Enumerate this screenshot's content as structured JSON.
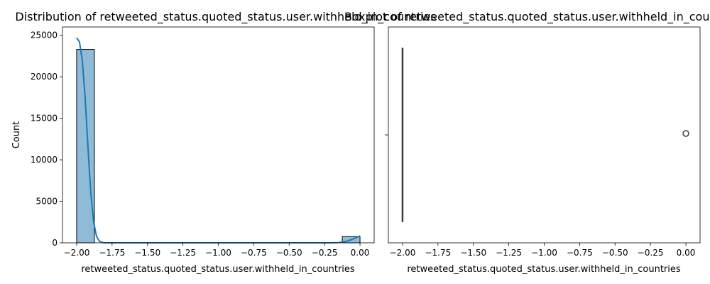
{
  "chart_data": [
    {
      "type": "histogram",
      "title": "Distribution of retweeted_status.quoted_status.user.withheld_in_countries",
      "xlabel": "retweeted_status.quoted_status.user.withheld_in_countries",
      "ylabel": "Count",
      "xlim": [
        -2.1,
        0.1
      ],
      "ylim": [
        0,
        26000
      ],
      "xticks": [
        -2.0,
        -1.75,
        -1.5,
        -1.25,
        -1.0,
        -0.75,
        -0.5,
        -0.25,
        0.0
      ],
      "xtick_labels": [
        "−2.00",
        "−1.75",
        "−1.50",
        "−1.25",
        "−1.00",
        "−0.75",
        "−0.50",
        "−0.25",
        "0.00"
      ],
      "yticks": [
        0,
        5000,
        10000,
        15000,
        20000,
        25000
      ],
      "ytick_labels": [
        "0",
        "5000",
        "10000",
        "15000",
        "20000",
        "25000"
      ],
      "bin_width": 0.125,
      "bins": [
        {
          "x0": -2.0,
          "x1": -1.875,
          "count": 23300
        },
        {
          "x0": -0.125,
          "x1": 0.0,
          "count": 750
        }
      ],
      "kde": [
        [
          -2.0,
          24700
        ],
        [
          -1.98,
          24200
        ],
        [
          -1.96,
          22000
        ],
        [
          -1.94,
          17500
        ],
        [
          -1.92,
          11500
        ],
        [
          -1.9,
          6000
        ],
        [
          -1.88,
          2500
        ],
        [
          -1.86,
          800
        ],
        [
          -1.84,
          200
        ],
        [
          -1.82,
          40
        ],
        [
          -1.8,
          0
        ],
        [
          -0.2,
          0
        ],
        [
          -0.15,
          30
        ],
        [
          -0.1,
          150
        ],
        [
          -0.06,
          380
        ],
        [
          -0.03,
          620
        ],
        [
          0.0,
          850
        ]
      ],
      "bar_color": "#8fbbd9",
      "line_color": "#1f77b4"
    },
    {
      "type": "boxplot",
      "title": "Boxplot of retweeted_status.quoted_status.user.withheld_in_countries",
      "xlabel": "retweeted_status.quoted_status.user.withheld_in_countries",
      "xlim": [
        -2.1,
        0.1
      ],
      "xticks": [
        -2.0,
        -1.75,
        -1.5,
        -1.25,
        -1.0,
        -0.75,
        -0.5,
        -0.25,
        0.0
      ],
      "xtick_labels": [
        "−2.00",
        "−1.75",
        "−1.50",
        "−1.25",
        "−1.00",
        "−0.75",
        "−0.50",
        "−0.25",
        "0.00"
      ],
      "box": {
        "min": -2.0,
        "q1": -2.0,
        "median": -2.0,
        "q3": -2.0,
        "max": -2.0
      },
      "outliers": [
        0.0
      ],
      "box_color": "#1f77b4"
    }
  ]
}
